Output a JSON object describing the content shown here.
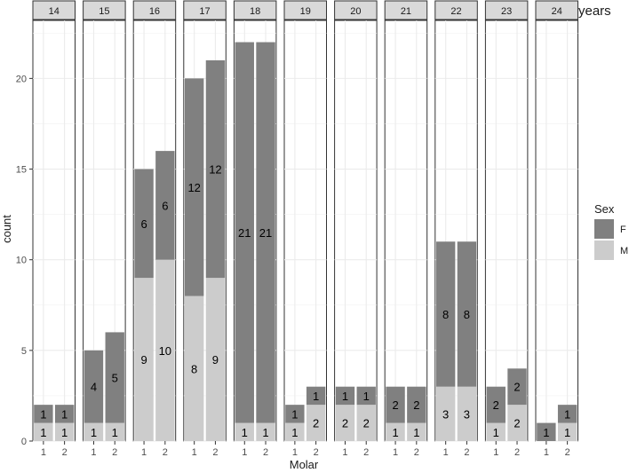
{
  "chart_data": {
    "type": "bar",
    "stacked": true,
    "facet_variable_label": "years",
    "facets": [
      "14",
      "15",
      "16",
      "17",
      "18",
      "19",
      "20",
      "21",
      "22",
      "23",
      "24"
    ],
    "categories": [
      "1",
      "2"
    ],
    "xlabel": "Molar",
    "ylabel": "count",
    "ylim": [
      0,
      23.2
    ],
    "yticks": [
      0,
      5,
      10,
      15,
      20
    ],
    "grid": true,
    "legend": {
      "title": "Sex",
      "position": "right",
      "entries": [
        {
          "label": "F",
          "color": "#808080"
        },
        {
          "label": "M",
          "color": "#cccccc"
        }
      ]
    },
    "stack_order": [
      "M",
      "F"
    ],
    "series": [
      {
        "name": "M",
        "color": "#cccccc",
        "values": [
          [
            1,
            1
          ],
          [
            1,
            1
          ],
          [
            9,
            10
          ],
          [
            8,
            9
          ],
          [
            1,
            1
          ],
          [
            1,
            2
          ],
          [
            2,
            2
          ],
          [
            1,
            1
          ],
          [
            3,
            3
          ],
          [
            1,
            2
          ],
          [
            0,
            1
          ]
        ]
      },
      {
        "name": "F",
        "color": "#808080",
        "values": [
          [
            1,
            1
          ],
          [
            4,
            5
          ],
          [
            6,
            6
          ],
          [
            12,
            12
          ],
          [
            21,
            21
          ],
          [
            1,
            1
          ],
          [
            1,
            1
          ],
          [
            2,
            2
          ],
          [
            8,
            8
          ],
          [
            2,
            2
          ],
          [
            1,
            1
          ]
        ]
      }
    ]
  }
}
